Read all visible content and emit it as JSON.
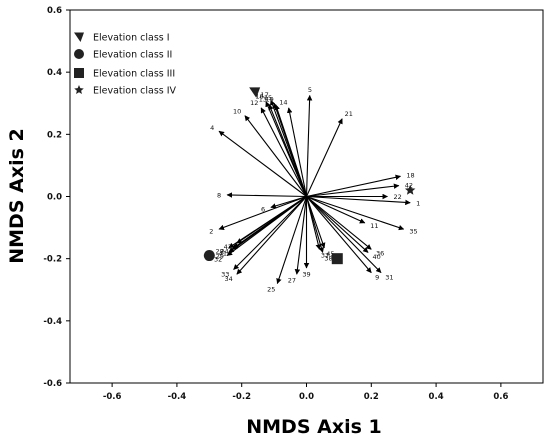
{
  "chart_data": {
    "type": "scatter",
    "title": "",
    "xlabel": "NMDS Axis 1",
    "ylabel": "NMDS Axis 2",
    "xlim": [
      -0.73,
      0.73
    ],
    "ylim": [
      -0.6,
      0.6
    ],
    "xticks": [
      -0.6,
      -0.4,
      -0.2,
      0.0,
      0.2,
      0.4,
      0.6
    ],
    "yticks": [
      -0.6,
      -0.4,
      -0.2,
      0.0,
      0.2,
      0.4,
      0.6
    ],
    "xtick_labels": [
      "-0.6",
      "-0.4",
      "-0.2",
      "0.0",
      "0.2",
      "0.4",
      "0.6"
    ],
    "ytick_labels": [
      "-0.6",
      "-0.4",
      "-0.2",
      "0.0",
      "0.2",
      "0.4",
      "0.6"
    ],
    "grid": false,
    "legend_position": "top-left",
    "arrow_origin": [
      0.0,
      0.0
    ],
    "vectors": [
      {
        "label": "1",
        "x": 0.32,
        "y": -0.02
      },
      {
        "label": "2",
        "x": -0.27,
        "y": -0.105
      },
      {
        "label": "4",
        "x": -0.27,
        "y": 0.21
      },
      {
        "label": "5",
        "x": 0.01,
        "y": 0.325
      },
      {
        "label": "8",
        "x": -0.245,
        "y": 0.005
      },
      {
        "label": "9",
        "x": 0.2,
        "y": -0.245
      },
      {
        "label": "10",
        "x": -0.19,
        "y": 0.26
      },
      {
        "label": "11",
        "x": 0.18,
        "y": -0.085
      },
      {
        "label": "12",
        "x": -0.14,
        "y": 0.285
      },
      {
        "label": "13",
        "x": -0.115,
        "y": 0.295
      },
      {
        "label": "14",
        "x": -0.055,
        "y": 0.285
      },
      {
        "label": "15",
        "x": -0.1,
        "y": 0.3
      },
      {
        "label": "16",
        "x": -0.125,
        "y": 0.305
      },
      {
        "label": "17",
        "x": -0.11,
        "y": 0.31
      },
      {
        "label": "18",
        "x": 0.29,
        "y": 0.065
      },
      {
        "label": "19",
        "x": -0.095,
        "y": 0.295
      },
      {
        "label": "21",
        "x": 0.11,
        "y": 0.25
      },
      {
        "label": "22",
        "x": 0.25,
        "y": 0.0
      },
      {
        "label": "24",
        "x": -0.225,
        "y": -0.165
      },
      {
        "label": "25",
        "x": -0.09,
        "y": -0.28
      },
      {
        "label": "27",
        "x": -0.03,
        "y": -0.25
      },
      {
        "label": "28",
        "x": -0.24,
        "y": -0.165
      },
      {
        "label": "29",
        "x": -0.24,
        "y": -0.18
      },
      {
        "label": "31",
        "x": 0.23,
        "y": -0.245
      },
      {
        "label": "32",
        "x": -0.245,
        "y": -0.19
      },
      {
        "label": "33",
        "x": -0.225,
        "y": -0.235
      },
      {
        "label": "34",
        "x": -0.215,
        "y": -0.25
      },
      {
        "label": "35",
        "x": 0.3,
        "y": -0.105
      },
      {
        "label": "36",
        "x": 0.2,
        "y": -0.17
      },
      {
        "label": "37",
        "x": 0.04,
        "y": -0.17
      },
      {
        "label": "38",
        "x": 0.05,
        "y": -0.18
      },
      {
        "label": "39",
        "x": 0.0,
        "y": -0.23
      },
      {
        "label": "40",
        "x": 0.19,
        "y": -0.18
      },
      {
        "label": "41",
        "x": -0.23,
        "y": -0.17
      },
      {
        "label": "42",
        "x": 0.285,
        "y": 0.035
      },
      {
        "label": "43",
        "x": -0.215,
        "y": -0.15
      },
      {
        "label": "45",
        "x": 0.055,
        "y": -0.165
      },
      {
        "label": "6",
        "x": -0.11,
        "y": -0.035
      }
    ],
    "series": [
      {
        "name": "Elevation class I",
        "marker": "triangle-left",
        "points": [
          [
            -0.16,
            0.335
          ]
        ]
      },
      {
        "name": "Elevation class II",
        "marker": "circle",
        "points": [
          [
            -0.3,
            -0.19
          ]
        ]
      },
      {
        "name": "Elevation class III",
        "marker": "square",
        "points": [
          [
            0.095,
            -0.2
          ]
        ]
      },
      {
        "name": "Elevation class IV",
        "marker": "star",
        "points": [
          [
            0.32,
            0.02
          ]
        ]
      }
    ]
  }
}
